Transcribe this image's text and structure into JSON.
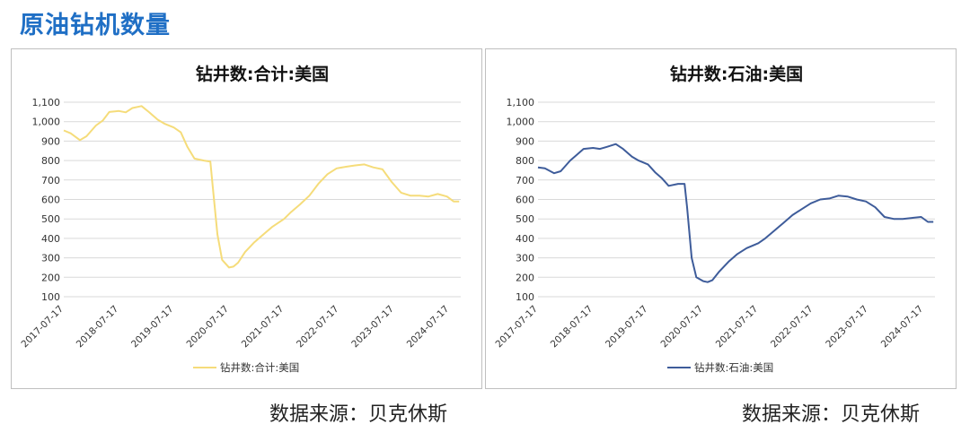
{
  "page_title": "原油钻机数量",
  "source_text": "数据来源：贝克休斯",
  "chart_data": [
    {
      "type": "line",
      "title": "钻井数:合计:美国",
      "ylim": [
        100,
        1100
      ],
      "yticks": [
        100,
        200,
        300,
        400,
        500,
        600,
        700,
        800,
        900,
        1000,
        1100
      ],
      "ytick_labels": [
        "100",
        "200",
        "300",
        "400",
        "500",
        "600",
        "700",
        "800",
        "900",
        "1,000",
        "1,100"
      ],
      "xlim": [
        "2017-07-17",
        "2024-10-01"
      ],
      "xtick_labels": [
        "2017-07-17",
        "2018-07-17",
        "2019-07-17",
        "2020-07-17",
        "2021-07-17",
        "2022-07-17",
        "2023-07-17",
        "2024-07-17"
      ],
      "legend": "bottom",
      "grid": true,
      "color": "#f5dc7a",
      "series": [
        {
          "name": "钻井数:合计:美国",
          "x": [
            "2017-07-17",
            "2017-09-01",
            "2017-11-01",
            "2017-12-15",
            "2018-02-15",
            "2018-04-01",
            "2018-05-15",
            "2018-07-17",
            "2018-09-01",
            "2018-10-15",
            "2018-12-15",
            "2019-02-01",
            "2019-04-01",
            "2019-05-15",
            "2019-07-17",
            "2019-09-01",
            "2019-10-15",
            "2019-12-01",
            "2020-02-01",
            "2020-03-15",
            "2020-04-01",
            "2020-05-01",
            "2020-06-01",
            "2020-07-17",
            "2020-08-15",
            "2020-09-15",
            "2020-11-01",
            "2021-01-01",
            "2021-03-01",
            "2021-05-01",
            "2021-07-17",
            "2021-09-01",
            "2021-11-01",
            "2022-01-01",
            "2022-03-01",
            "2022-05-01",
            "2022-07-01",
            "2022-09-01",
            "2022-11-01",
            "2023-01-01",
            "2023-03-01",
            "2023-05-01",
            "2023-07-01",
            "2023-09-01",
            "2023-11-01",
            "2024-01-01",
            "2024-03-01",
            "2024-05-01",
            "2024-07-01",
            "2024-08-15",
            "2024-09-20"
          ],
          "values": [
            955,
            940,
            905,
            925,
            980,
            1005,
            1050,
            1055,
            1048,
            1070,
            1080,
            1050,
            1010,
            990,
            970,
            945,
            870,
            810,
            800,
            795,
            660,
            420,
            290,
            250,
            255,
            275,
            330,
            380,
            420,
            460,
            500,
            535,
            575,
            620,
            680,
            730,
            760,
            768,
            775,
            780,
            765,
            755,
            690,
            635,
            620,
            620,
            615,
            628,
            615,
            590,
            590
          ]
        }
      ]
    },
    {
      "type": "line",
      "title": "钻井数:石油:美国",
      "ylim": [
        100,
        1100
      ],
      "yticks": [
        100,
        200,
        300,
        400,
        500,
        600,
        700,
        800,
        900,
        1000,
        1100
      ],
      "ytick_labels": [
        "100",
        "200",
        "300",
        "400",
        "500",
        "600",
        "700",
        "800",
        "900",
        "1,000",
        "1,100"
      ],
      "xlim": [
        "2017-07-17",
        "2024-10-01"
      ],
      "xtick_labels": [
        "2017-07-17",
        "2018-07-17",
        "2019-07-17",
        "2020-07-17",
        "2021-07-17",
        "2022-07-17",
        "2023-07-17",
        "2024-07-17"
      ],
      "legend": "bottom",
      "grid": true,
      "color": "#3e5c9a",
      "series": [
        {
          "name": "钻井数:石油:美国",
          "x": [
            "2017-07-17",
            "2017-09-01",
            "2017-11-01",
            "2017-12-15",
            "2018-02-15",
            "2018-04-01",
            "2018-05-15",
            "2018-07-17",
            "2018-09-01",
            "2018-10-15",
            "2018-12-15",
            "2019-02-01",
            "2019-04-01",
            "2019-05-15",
            "2019-07-17",
            "2019-09-01",
            "2019-10-15",
            "2019-12-01",
            "2020-02-01",
            "2020-03-15",
            "2020-04-01",
            "2020-05-01",
            "2020-06-01",
            "2020-07-17",
            "2020-08-15",
            "2020-09-15",
            "2020-11-01",
            "2021-01-01",
            "2021-03-01",
            "2021-05-01",
            "2021-07-17",
            "2021-09-01",
            "2021-11-01",
            "2022-01-01",
            "2022-03-01",
            "2022-05-01",
            "2022-07-01",
            "2022-09-01",
            "2022-11-01",
            "2023-01-01",
            "2023-03-01",
            "2023-05-01",
            "2023-07-01",
            "2023-09-01",
            "2023-11-01",
            "2024-01-01",
            "2024-03-01",
            "2024-05-01",
            "2024-07-01",
            "2024-08-15",
            "2024-09-20"
          ],
          "values": [
            765,
            760,
            735,
            745,
            800,
            830,
            860,
            865,
            860,
            870,
            885,
            860,
            820,
            800,
            780,
            740,
            710,
            670,
            680,
            680,
            560,
            300,
            200,
            180,
            175,
            185,
            230,
            280,
            320,
            350,
            375,
            400,
            440,
            480,
            520,
            550,
            580,
            600,
            605,
            620,
            615,
            600,
            590,
            560,
            510,
            500,
            500,
            505,
            510,
            485,
            485
          ]
        }
      ]
    }
  ]
}
